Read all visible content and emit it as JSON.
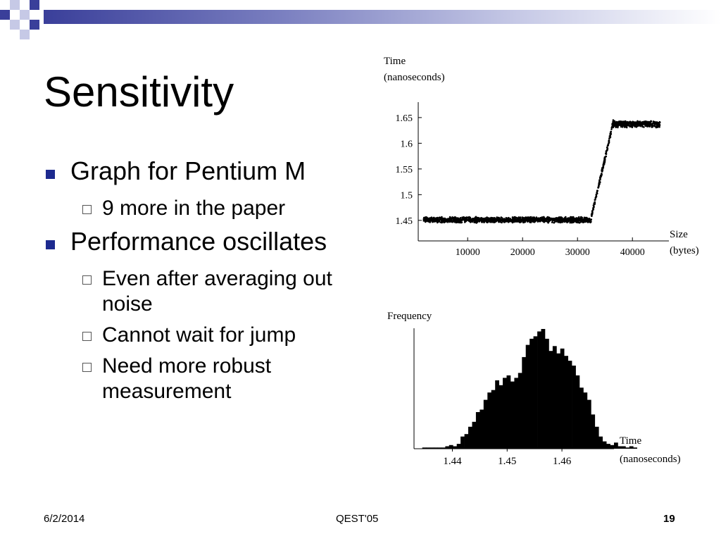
{
  "slide": {
    "title": "Sensitivity",
    "bullets": [
      {
        "text": "Graph for Pentium M",
        "sub": [
          "9 more in the paper"
        ]
      },
      {
        "text": "Performance oscillates",
        "sub": [
          "Even after averaging out noise",
          "Cannot wait for jump",
          "Need more robust measurement"
        ]
      }
    ],
    "footer": {
      "date": "6/2/2014",
      "center": "QEST'05",
      "page": "19"
    }
  },
  "colors": {
    "accent": "#1d2a8f",
    "band_start": "#3a3f9a",
    "decor_light": "#c6c9e6",
    "marks": "#000000"
  },
  "chart_data": [
    {
      "type": "scatter",
      "ylabel": "Time (nanoseconds)",
      "xlabel": "Size (bytes)",
      "xticks": [
        10000,
        20000,
        30000,
        40000
      ],
      "yticks": [
        1.45,
        1.5,
        1.55,
        1.6,
        1.65
      ],
      "xlim": [
        1000,
        46000
      ],
      "ylim": [
        1.41,
        1.68
      ],
      "description_series": [
        {
          "x_range": [
            2000,
            32500
          ],
          "y_level": 1.451,
          "spread": 0.006
        },
        {
          "x_range": [
            32500,
            36500
          ],
          "y_start": 1.455,
          "y_end": 1.64,
          "spread": 0.006
        },
        {
          "x_range": [
            36500,
            45000
          ],
          "y_level": 1.637,
          "spread": 0.007
        }
      ],
      "grid": false
    },
    {
      "type": "bar",
      "ylabel": "Frequency",
      "xlabel": "Time (nanoseconds)",
      "xticks": [
        1.44,
        1.45,
        1.46
      ],
      "xlim": [
        1.433,
        1.4695
      ],
      "bin_start": 1.4345,
      "bin_width": 0.0007,
      "values": [
        1,
        1,
        1,
        1,
        1,
        1,
        2,
        3,
        2,
        4,
        10,
        12,
        18,
        22,
        30,
        32,
        40,
        46,
        48,
        56,
        52,
        58,
        60,
        55,
        58,
        62,
        75,
        85,
        90,
        92,
        96,
        98,
        90,
        80,
        84,
        78,
        82,
        76,
        72,
        68,
        60,
        50,
        46,
        40,
        28,
        18,
        10,
        6,
        4,
        3,
        5,
        2,
        2,
        1,
        2,
        1
      ]
    }
  ],
  "ui": {
    "scatter_label_time": "Time",
    "scatter_label_ns": "(nanoseconds)",
    "scatter_label_size": "Size",
    "scatter_label_bytes": "(bytes)",
    "hist_label_freq": "Frequency",
    "hist_label_time": "Time",
    "hist_label_ns": "(nanoseconds)"
  }
}
